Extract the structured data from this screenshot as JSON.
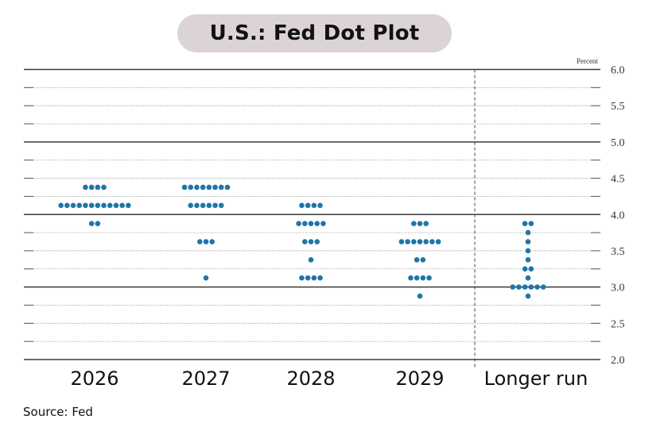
{
  "chart_data": {
    "type": "scatter",
    "title": "U.S.: Fed Dot Plot",
    "unit_label": "Percent",
    "ylim": [
      2.0,
      6.0
    ],
    "y_ticks": [
      "6.0",
      "5.5",
      "5.0",
      "4.5",
      "4.0",
      "3.5",
      "3.0",
      "2.5",
      "2.0"
    ],
    "categories": [
      "2026",
      "2027",
      "2028",
      "2029",
      "Longer run"
    ],
    "dots": [
      {
        "category": "2026",
        "levels": [
          {
            "rate": 4.375,
            "count": 4
          },
          {
            "rate": 4.125,
            "count": 12
          },
          {
            "rate": 3.875,
            "count": 2
          }
        ]
      },
      {
        "category": "2027",
        "levels": [
          {
            "rate": 4.375,
            "count": 8
          },
          {
            "rate": 4.125,
            "count": 6
          },
          {
            "rate": 3.625,
            "count": 3
          },
          {
            "rate": 3.125,
            "count": 1
          }
        ]
      },
      {
        "category": "2028",
        "levels": [
          {
            "rate": 4.125,
            "count": 4
          },
          {
            "rate": 3.875,
            "count": 5
          },
          {
            "rate": 3.625,
            "count": 3
          },
          {
            "rate": 3.375,
            "count": 1
          },
          {
            "rate": 3.125,
            "count": 4
          }
        ]
      },
      {
        "category": "2029",
        "levels": [
          {
            "rate": 3.875,
            "count": 3
          },
          {
            "rate": 3.625,
            "count": 7
          },
          {
            "rate": 3.375,
            "count": 2
          },
          {
            "rate": 3.125,
            "count": 4
          },
          {
            "rate": 2.875,
            "count": 1
          }
        ]
      },
      {
        "category": "Longer run",
        "levels": [
          {
            "rate": 3.875,
            "count": 2
          },
          {
            "rate": 3.75,
            "count": 1
          },
          {
            "rate": 3.625,
            "count": 1
          },
          {
            "rate": 3.5,
            "count": 1
          },
          {
            "rate": 3.375,
            "count": 1
          },
          {
            "rate": 3.25,
            "count": 2
          },
          {
            "rate": 3.125,
            "count": 1
          },
          {
            "rate": 3.0,
            "count": 6
          },
          {
            "rate": 2.875,
            "count": 1
          }
        ]
      }
    ],
    "dot_color": "#1e76a8",
    "grid": true,
    "longer_run_separator": "dashed vertical line"
  },
  "source": "Source: Fed"
}
